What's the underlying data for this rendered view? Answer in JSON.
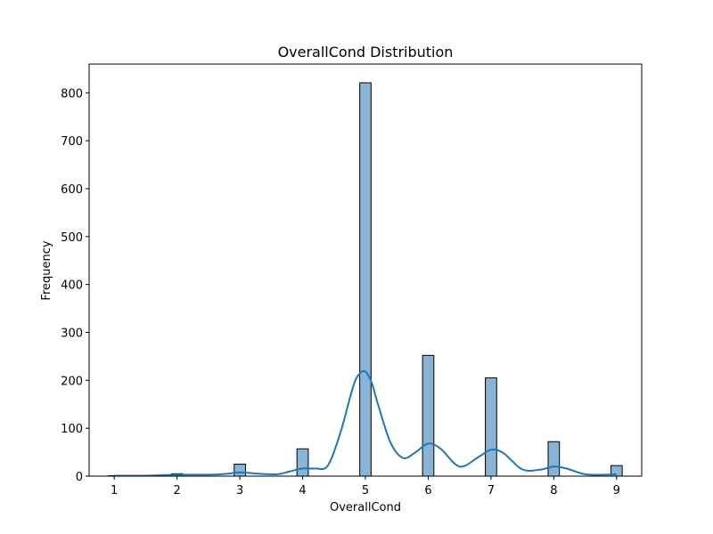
{
  "chart_data": {
    "type": "bar",
    "title": "OverallCond Distribution",
    "xlabel": "OverallCond",
    "ylabel": "Frequency",
    "xlim": [
      0.6,
      9.4
    ],
    "ylim": [
      0,
      860
    ],
    "xticks": [
      1,
      2,
      3,
      4,
      5,
      6,
      7,
      8,
      9
    ],
    "yticks": [
      0,
      100,
      200,
      300,
      400,
      500,
      600,
      700,
      800
    ],
    "bin_width": 0.18,
    "categories": [
      1,
      2,
      3,
      4,
      5,
      6,
      7,
      8,
      9
    ],
    "values": [
      1,
      5,
      25,
      57,
      821,
      252,
      205,
      72,
      22
    ],
    "kde": {
      "x": [
        1.0,
        1.5,
        2.0,
        2.5,
        2.8,
        3.0,
        3.3,
        3.6,
        3.8,
        4.0,
        4.2,
        4.4,
        4.6,
        4.8,
        4.9,
        5.0,
        5.1,
        5.2,
        5.4,
        5.6,
        5.8,
        6.0,
        6.2,
        6.5,
        6.8,
        7.0,
        7.2,
        7.5,
        7.8,
        8.0,
        8.2,
        8.5,
        8.8,
        9.0
      ],
      "y": [
        1,
        1,
        3,
        3,
        5,
        8,
        5,
        4,
        10,
        16,
        16,
        22,
        90,
        185,
        213,
        218,
        195,
        150,
        70,
        38,
        50,
        68,
        57,
        20,
        40,
        55,
        48,
        14,
        14,
        20,
        16,
        4,
        3,
        4
      ]
    },
    "grid": false,
    "bar_color": "#88b4d8",
    "line_color": "#1f77b4"
  }
}
